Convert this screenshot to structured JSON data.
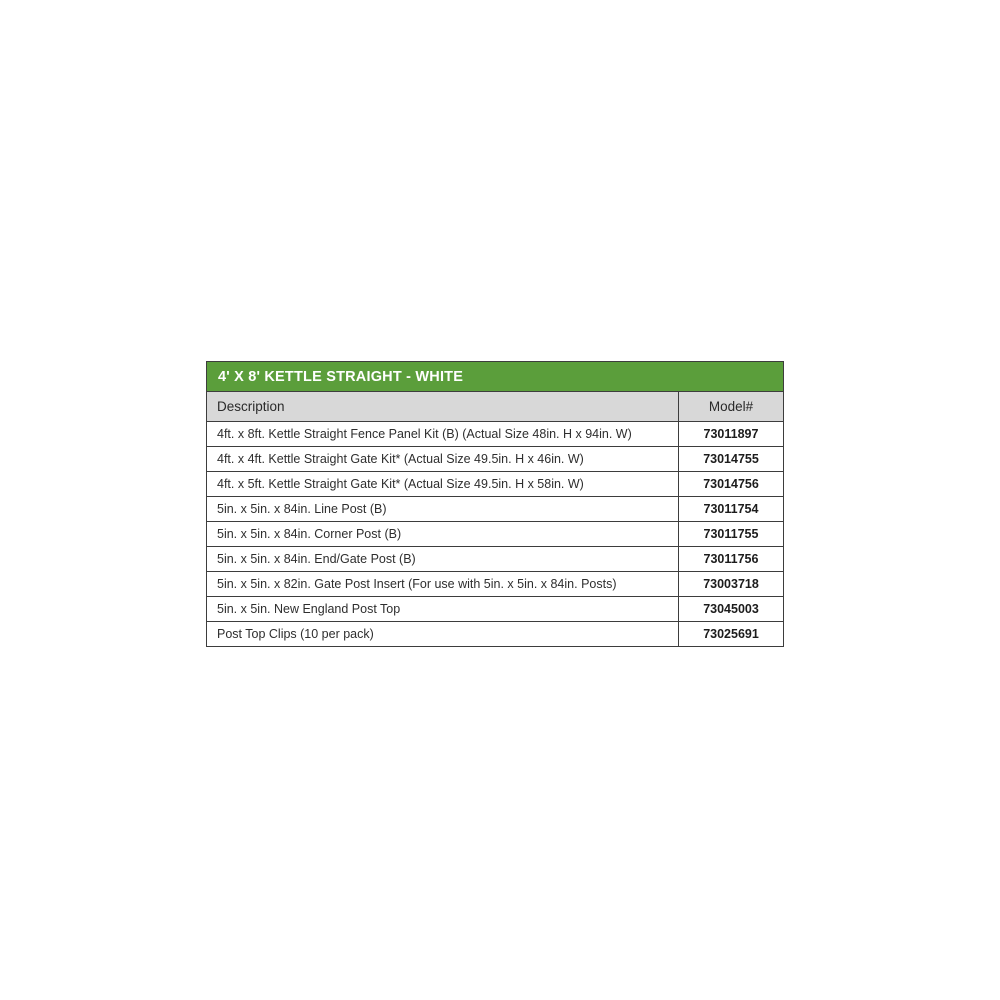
{
  "table": {
    "title": "4' X 8' KETTLE STRAIGHT - WHITE",
    "columns": {
      "description": "Description",
      "model": "Model#"
    },
    "rows": [
      {
        "description": "4ft. x 8ft. Kettle Straight Fence Panel Kit (B) (Actual Size 48in. H x 94in. W)",
        "model": "73011897"
      },
      {
        "description": "4ft. x 4ft. Kettle Straight Gate Kit* (Actual Size 49.5in. H x 46in. W)",
        "model": "73014755"
      },
      {
        "description": "4ft. x 5ft. Kettle Straight Gate Kit* (Actual Size 49.5in. H x 58in. W)",
        "model": "73014756"
      },
      {
        "description": "5in. x 5in. x 84in. Line Post (B)",
        "model": "73011754"
      },
      {
        "description": "5in. x 5in. x 84in. Corner Post (B)",
        "model": "73011755"
      },
      {
        "description": "5in. x 5in. x 84in. End/Gate Post (B)",
        "model": "73011756"
      },
      {
        "description": "5in. x 5in. x 82in. Gate Post Insert (For use with 5in. x 5in. x 84in. Posts)",
        "model": "73003718"
      },
      {
        "description": "5in. x 5in. New England Post Top",
        "model": "73045003"
      },
      {
        "description": "Post Top Clips (10 per pack)",
        "model": "73025691"
      }
    ],
    "colors": {
      "title_bg": "#5b9e3b",
      "title_text": "#ffffff",
      "header_bg": "#d8d8d8",
      "border": "#3d3d3d",
      "text": "#2e2e2e"
    }
  }
}
